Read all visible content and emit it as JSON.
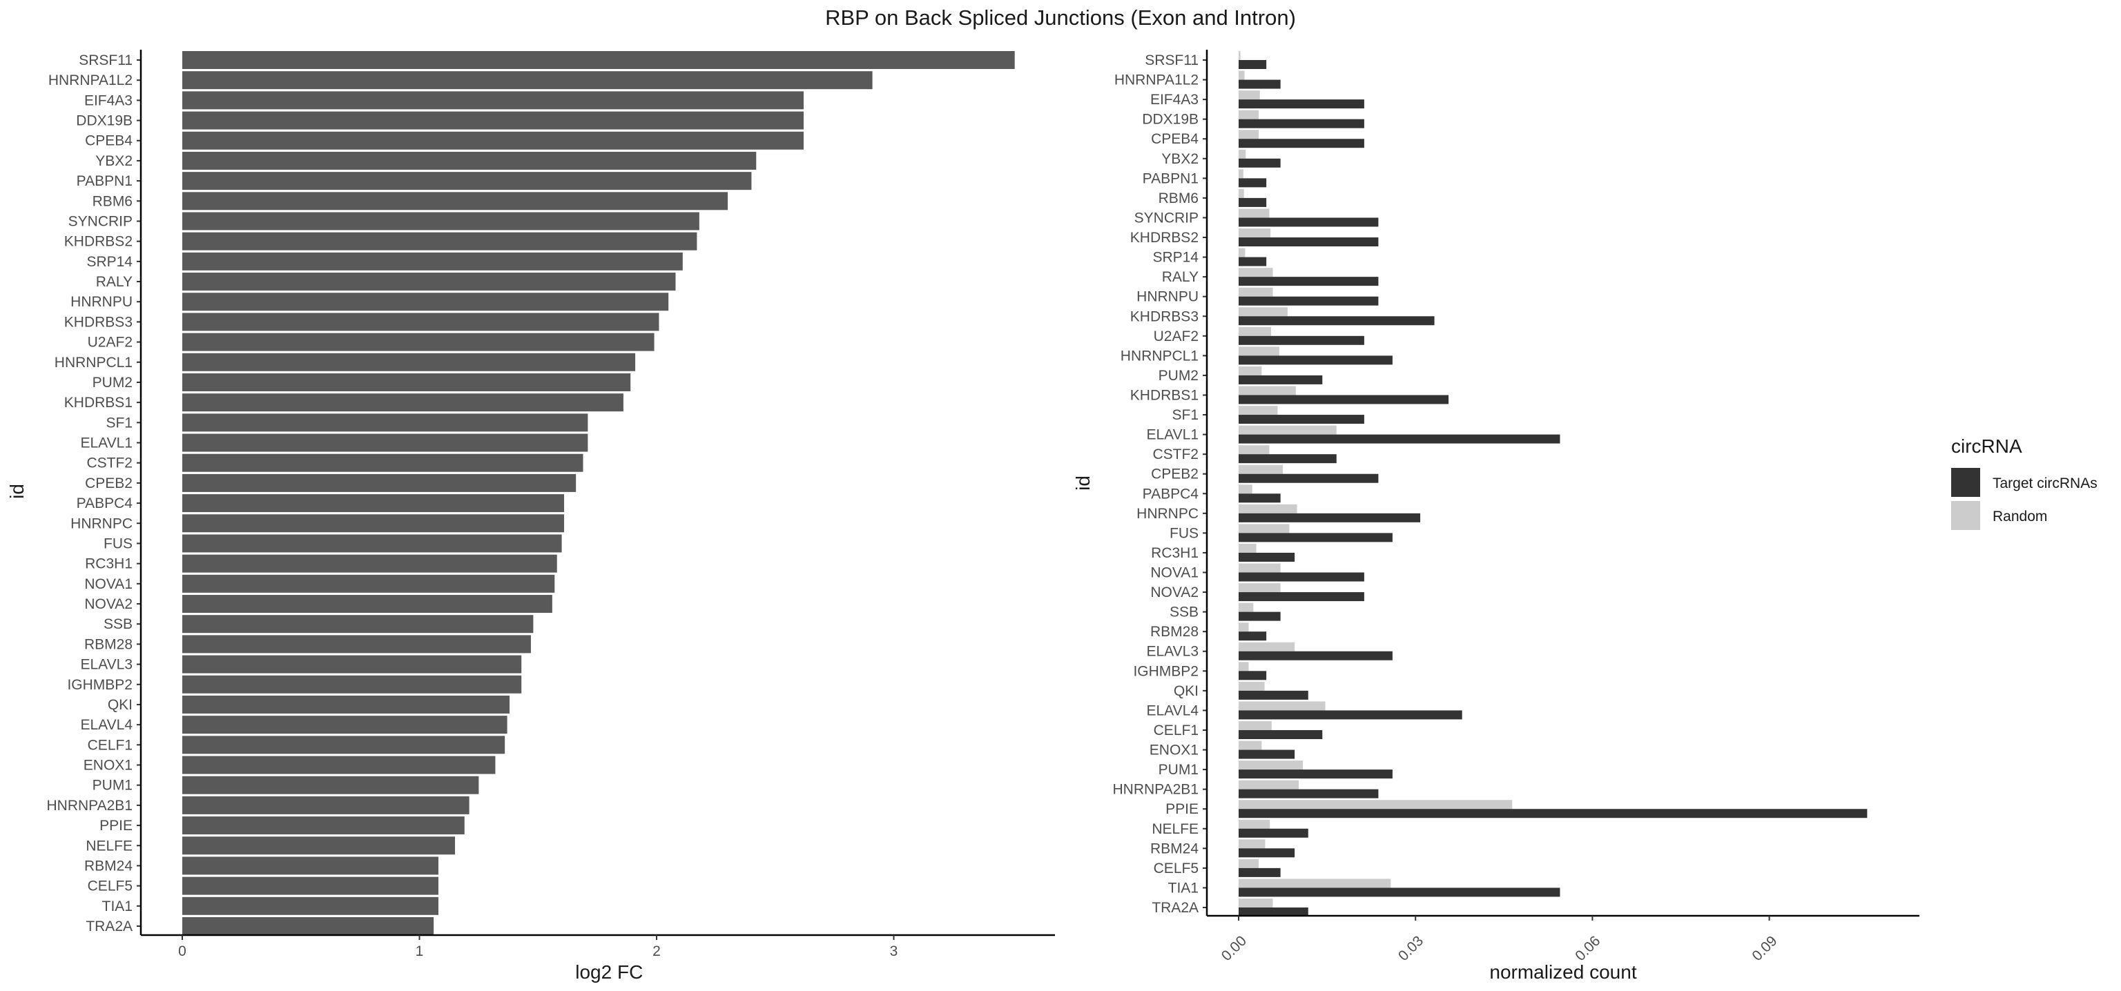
{
  "title": "RBP on Back Spliced Junctions (Exon and Intron)",
  "chart_data": [
    {
      "type": "bar",
      "orientation": "horizontal",
      "categories": [
        "SRSF11",
        "HNRNPA1L2",
        "EIF4A3",
        "DDX19B",
        "CPEB4",
        "YBX2",
        "PABPN1",
        "RBM6",
        "SYNCRIP",
        "KHDRBS2",
        "SRP14",
        "RALY",
        "HNRNPU",
        "KHDRBS3",
        "U2AF2",
        "HNRNPCL1",
        "PUM2",
        "KHDRBS1",
        "SF1",
        "ELAVL1",
        "CSTF2",
        "CPEB2",
        "PABPC4",
        "HNRNPC",
        "FUS",
        "RC3H1",
        "NOVA1",
        "NOVA2",
        "SSB",
        "RBM28",
        "ELAVL3",
        "IGHMBP2",
        "QKI",
        "ELAVL4",
        "CELF1",
        "ENOX1",
        "PUM1",
        "HNRNPA2B1",
        "PPIE",
        "NELFE",
        "RBM24",
        "CELF5",
        "TIA1",
        "TRA2A"
      ],
      "values": [
        3.51,
        2.91,
        2.62,
        2.62,
        2.62,
        2.42,
        2.4,
        2.3,
        2.18,
        2.17,
        2.11,
        2.08,
        2.05,
        2.01,
        1.99,
        1.91,
        1.89,
        1.86,
        1.71,
        1.71,
        1.69,
        1.66,
        1.61,
        1.61,
        1.6,
        1.58,
        1.57,
        1.56,
        1.48,
        1.47,
        1.43,
        1.43,
        1.38,
        1.37,
        1.36,
        1.32,
        1.25,
        1.21,
        1.19,
        1.15,
        1.08,
        1.08,
        1.08,
        1.06
      ],
      "xlabel": "log2 FC",
      "ylabel": "id",
      "xlim": [
        0,
        3.6
      ],
      "xticks": [
        "0",
        "1",
        "2",
        "3"
      ],
      "bar_color": "#595959",
      "grid": false
    },
    {
      "type": "bar",
      "orientation": "horizontal",
      "grouped": true,
      "categories": [
        "SRSF11",
        "HNRNPA1L2",
        "EIF4A3",
        "DDX19B",
        "CPEB4",
        "YBX2",
        "PABPN1",
        "RBM6",
        "SYNCRIP",
        "KHDRBS2",
        "SRP14",
        "RALY",
        "HNRNPU",
        "KHDRBS3",
        "U2AF2",
        "HNRNPCL1",
        "PUM2",
        "KHDRBS1",
        "SF1",
        "ELAVL1",
        "CSTF2",
        "CPEB2",
        "PABPC4",
        "HNRNPC",
        "FUS",
        "RC3H1",
        "NOVA1",
        "NOVA2",
        "SSB",
        "RBM28",
        "ELAVL3",
        "IGHMBP2",
        "QKI",
        "ELAVL4",
        "CELF1",
        "ENOX1",
        "PUM1",
        "HNRNPA2B1",
        "PPIE",
        "NELFE",
        "RBM24",
        "CELF5",
        "TIA1",
        "TRA2A"
      ],
      "series": [
        {
          "name": "Target circRNAs",
          "color": "#333333",
          "values": [
            0.0047,
            0.0071,
            0.0213,
            0.0213,
            0.0213,
            0.0071,
            0.0047,
            0.0047,
            0.0237,
            0.0237,
            0.0047,
            0.0237,
            0.0237,
            0.0332,
            0.0213,
            0.0261,
            0.0142,
            0.0356,
            0.0213,
            0.0545,
            0.0166,
            0.0237,
            0.0071,
            0.0308,
            0.0261,
            0.0095,
            0.0213,
            0.0213,
            0.0071,
            0.0047,
            0.0261,
            0.0047,
            0.0118,
            0.0379,
            0.0142,
            0.0095,
            0.0261,
            0.0237,
            0.1066,
            0.0118,
            0.0095,
            0.0071,
            0.0545,
            0.0118
          ]
        },
        {
          "name": "Random",
          "color": "#cccccc",
          "values": [
            0.0003,
            0.001,
            0.0036,
            0.0034,
            0.0034,
            0.0012,
            0.0008,
            0.0009,
            0.0052,
            0.0054,
            0.0011,
            0.0058,
            0.0058,
            0.0083,
            0.0055,
            0.0069,
            0.0039,
            0.0097,
            0.0066,
            0.0166,
            0.0052,
            0.0075,
            0.0023,
            0.0099,
            0.0086,
            0.003,
            0.0071,
            0.0071,
            0.0025,
            0.0017,
            0.0095,
            0.0017,
            0.0044,
            0.0147,
            0.0056,
            0.0039,
            0.0109,
            0.0102,
            0.0464,
            0.0053,
            0.0045,
            0.0034,
            0.0258,
            0.0058
          ]
        }
      ],
      "xlabel": "normalized count",
      "ylabel": "id",
      "xlim": [
        -0.001,
        0.111
      ],
      "xticks": [
        "0.00",
        "0.03",
        "0.06",
        "0.09"
      ],
      "legend": {
        "title": "circRNA",
        "position": "right"
      },
      "grid": false
    }
  ]
}
